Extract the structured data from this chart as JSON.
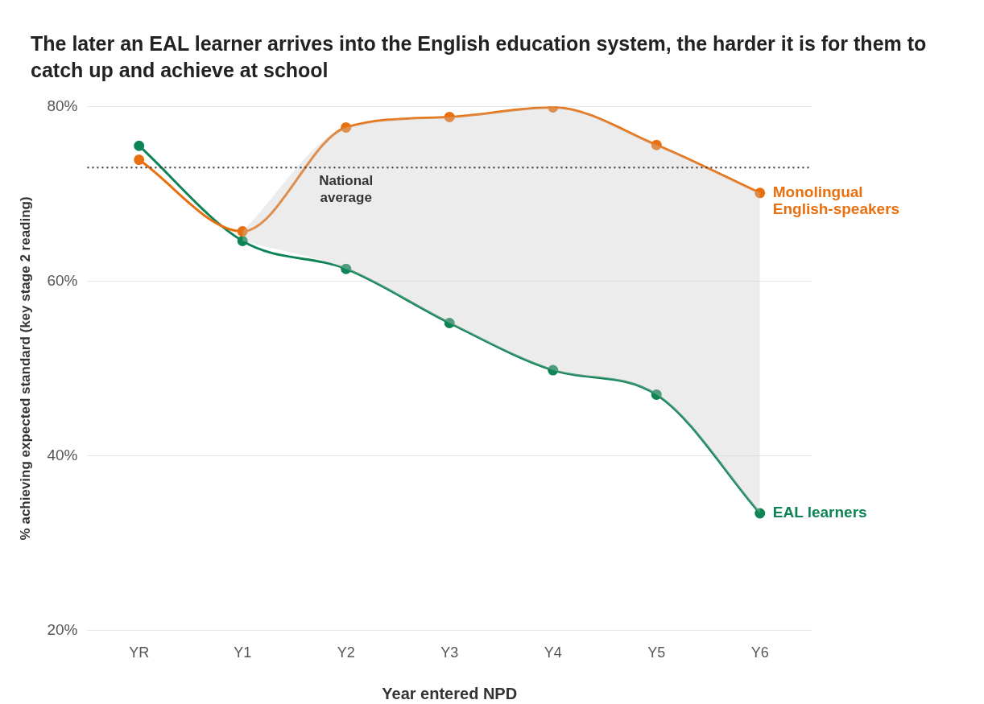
{
  "chart_data": {
    "type": "line",
    "title": "The later an EAL learner arrives into the English education system, the harder it is for them to catch up and achieve at school",
    "xlabel": "Year entered NPD",
    "ylabel": "% achieving expected standard (key stage 2 reading)",
    "categories": [
      "YR",
      "Y1",
      "Y2",
      "Y3",
      "Y4",
      "Y5",
      "Y6"
    ],
    "series": [
      {
        "name": "Monolingual English-speakers",
        "color": "#e8700f",
        "values": [
          73.9,
          65.7,
          77.6,
          78.8,
          79.9,
          75.6,
          70.1
        ]
      },
      {
        "name": "EAL learners",
        "color": "#0e8456",
        "values": [
          75.5,
          64.6,
          61.4,
          55.2,
          49.8,
          47.0,
          33.4
        ],
        "lower": [
          null,
          64.6,
          61.4,
          55.2,
          49.8,
          47.0,
          33.4
        ],
        "upper": [
          null,
          65.7,
          77.6,
          78.8,
          79.9,
          75.6,
          70.1
        ]
      }
    ],
    "ylim": [
      20,
      80
    ],
    "yticks": [
      {
        "value": 20,
        "label": "20%"
      },
      {
        "value": 40,
        "label": "40%"
      },
      {
        "value": 60,
        "label": "60%"
      },
      {
        "value": 80,
        "label": "80%"
      }
    ],
    "grid": "y",
    "marker": "circle",
    "line_style": "solid",
    "ref_lines": [
      {
        "axis": "y",
        "value": 73,
        "label": "National average",
        "color": "#333333",
        "line_style": "dotted"
      }
    ]
  }
}
